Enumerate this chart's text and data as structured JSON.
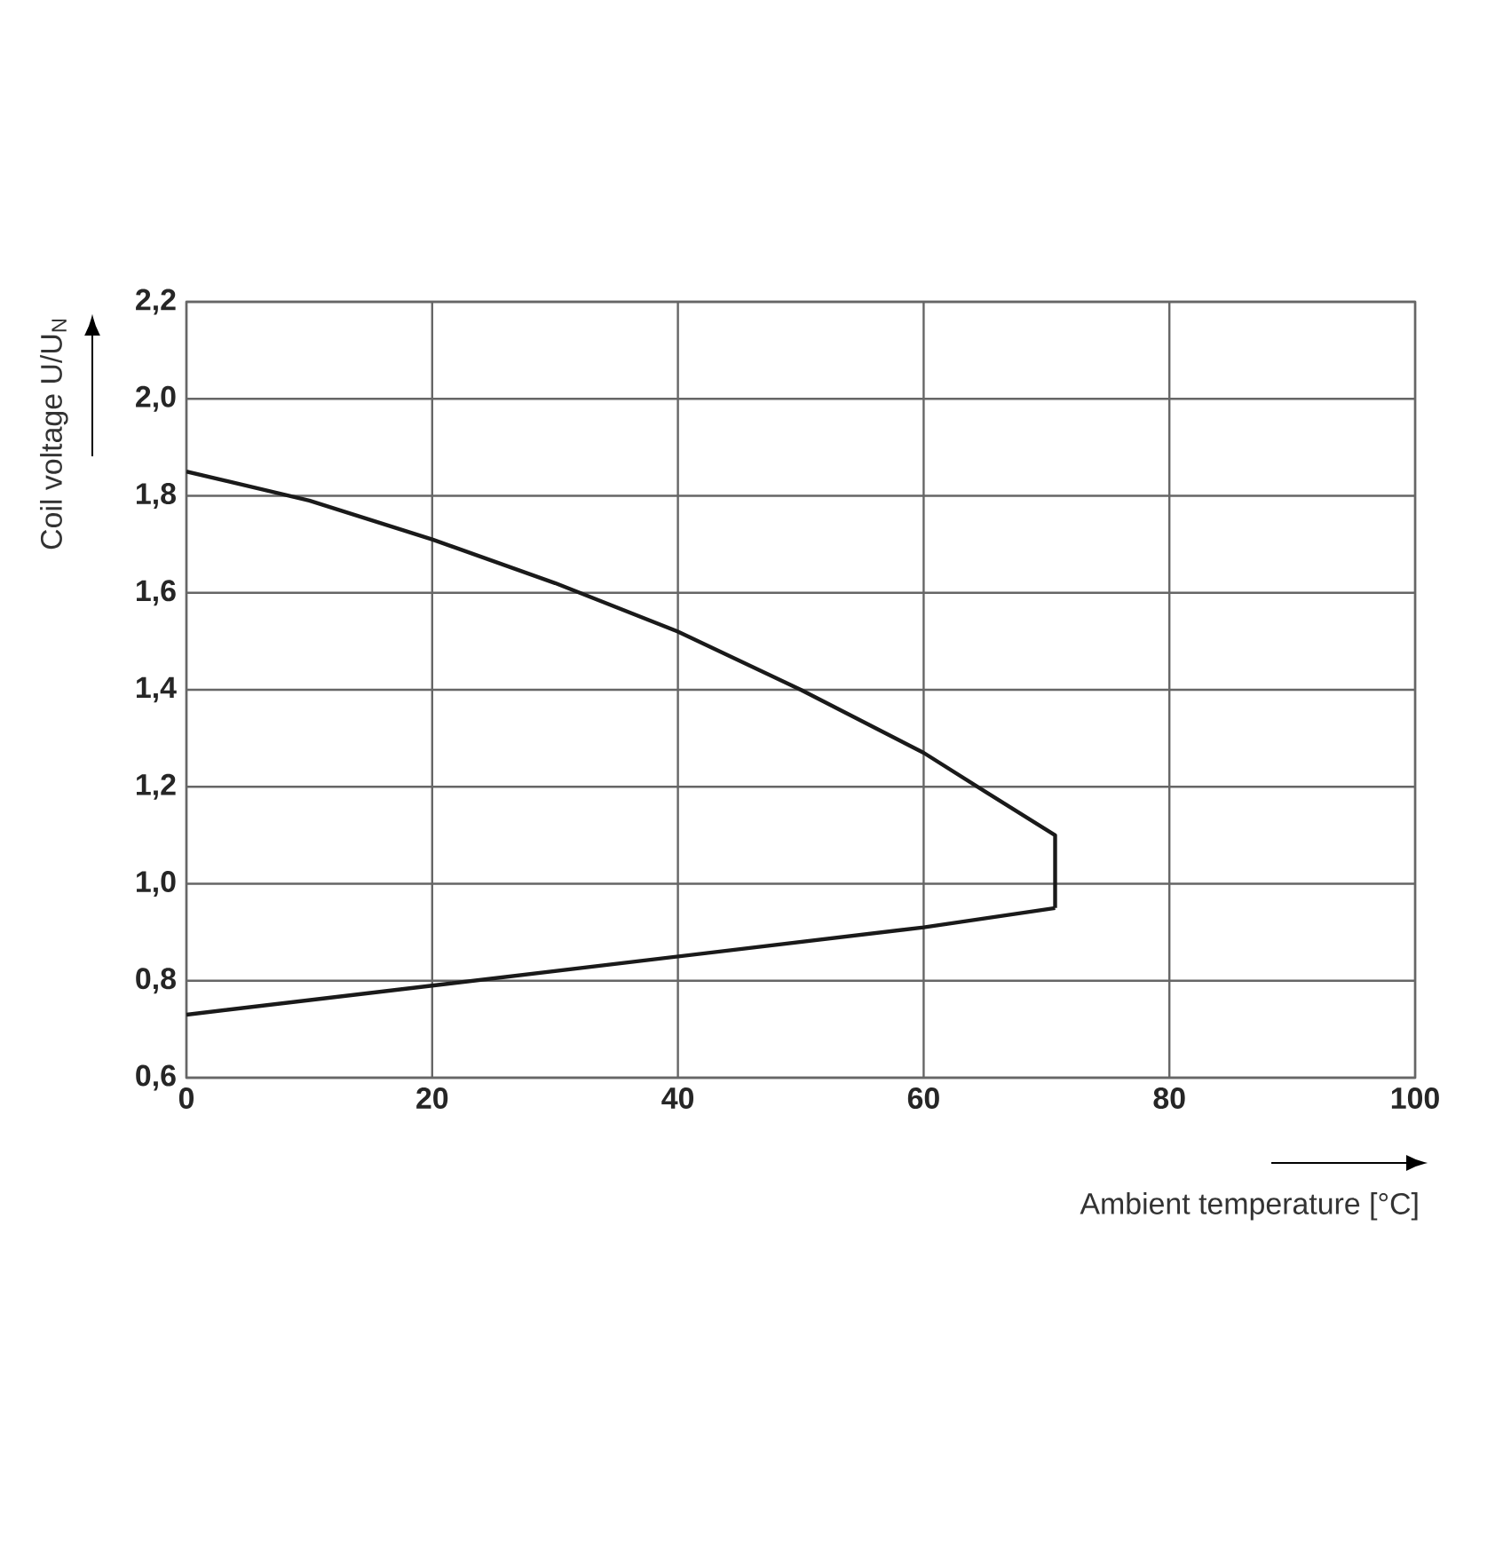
{
  "chart_data": {
    "type": "line",
    "xlabel": "Ambient temperature [°C]",
    "ylabel": "Coil voltage U/U$_{N}$",
    "xlim": [
      0,
      100
    ],
    "xticks": [
      0,
      20,
      40,
      60,
      80,
      100
    ],
    "ylim": [
      0.6,
      2.2
    ],
    "yticks": [
      {
        "value": 0.6,
        "label": "0,6"
      },
      {
        "value": 0.8,
        "label": "0,8"
      },
      {
        "value": 1.0,
        "label": "1,0"
      },
      {
        "value": 1.2,
        "label": "1,2"
      },
      {
        "value": 1.4,
        "label": "1,4"
      },
      {
        "value": 1.6,
        "label": "1,6"
      },
      {
        "value": 1.8,
        "label": "1,8"
      },
      {
        "value": 2.0,
        "label": "2,0"
      },
      {
        "value": 2.2,
        "label": "2,2"
      }
    ],
    "grid": true,
    "marker": "none",
    "line_style": "solid",
    "series": [
      {
        "color": "#1a1a1a",
        "x": [
          0,
          10,
          20,
          30,
          40,
          50,
          60,
          65,
          70.7,
          70.7
        ],
        "values": [
          1.85,
          1.79,
          1.71,
          1.62,
          1.52,
          1.4,
          1.27,
          1.19,
          1.1,
          0.95
        ]
      },
      {
        "color": "#1a1a1a",
        "x": [
          0,
          20,
          40,
          60,
          70.7
        ],
        "values": [
          0.73,
          0.79,
          0.85,
          0.91,
          0.95
        ]
      }
    ]
  }
}
